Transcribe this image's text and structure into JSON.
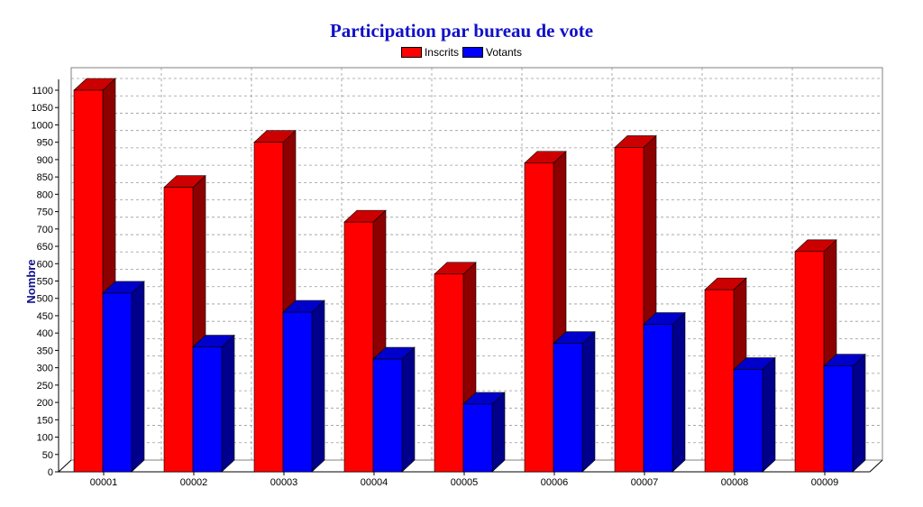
{
  "chart_data": {
    "type": "bar",
    "title": "Participation par bureau de vote",
    "xlabel": "",
    "ylabel": "Nombre",
    "categories": [
      "00001",
      "00002",
      "00003",
      "00004",
      "00005",
      "00006",
      "00007",
      "00008",
      "00009"
    ],
    "series": [
      {
        "name": "Inscrits",
        "color": "#ff0000",
        "values": [
          1100,
          820,
          950,
          720,
          570,
          890,
          935,
          525,
          635
        ]
      },
      {
        "name": "Votants",
        "color": "#0000ff",
        "values": [
          515,
          360,
          460,
          325,
          195,
          370,
          425,
          295,
          305
        ]
      }
    ],
    "ylim": [
      0,
      1100
    ],
    "yticks": [
      0,
      50,
      100,
      150,
      200,
      250,
      300,
      350,
      400,
      450,
      500,
      550,
      600,
      650,
      700,
      750,
      800,
      850,
      900,
      950,
      1000,
      1050,
      1100
    ],
    "grid": true,
    "legend": "top-center",
    "style": "3d-bar"
  }
}
